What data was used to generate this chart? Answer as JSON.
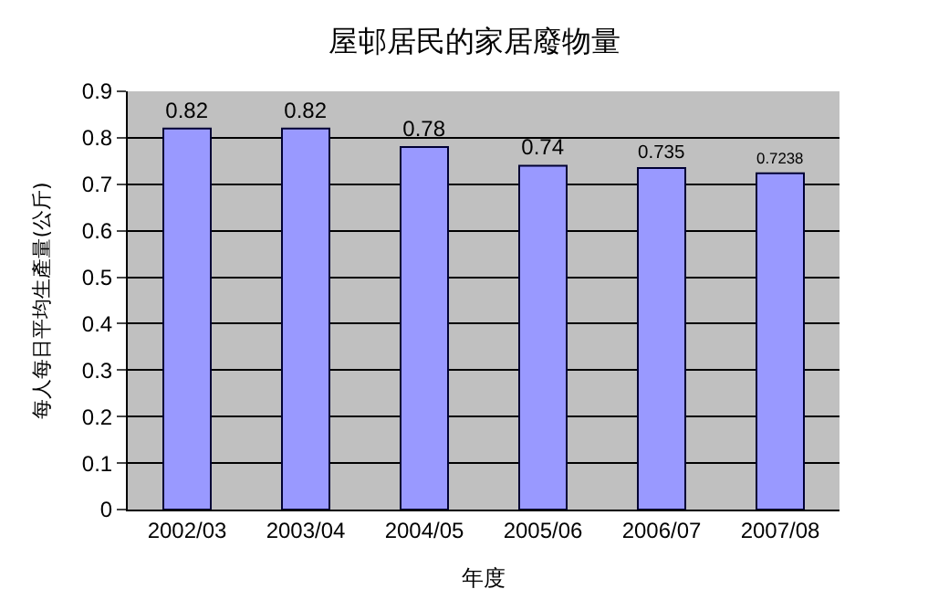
{
  "chart_data": {
    "type": "bar",
    "title": "屋邨居民的家居廢物量",
    "xlabel": "年度",
    "ylabel": "每人每日平均生產量(公斤)",
    "categories": [
      "2002/03",
      "2003/04",
      "2004/05",
      "2005/06",
      "2006/07",
      "2007/08"
    ],
    "values": [
      0.82,
      0.82,
      0.78,
      0.74,
      0.735,
      0.7238
    ],
    "color": "#9999ff",
    "data_labels": true,
    "grid": "y",
    "legend": false,
    "ylim": [
      0,
      0.9
    ],
    "yticks": [
      0,
      0.1,
      0.2,
      0.3,
      0.4,
      0.5,
      0.6,
      0.7,
      0.8,
      0.9
    ]
  }
}
